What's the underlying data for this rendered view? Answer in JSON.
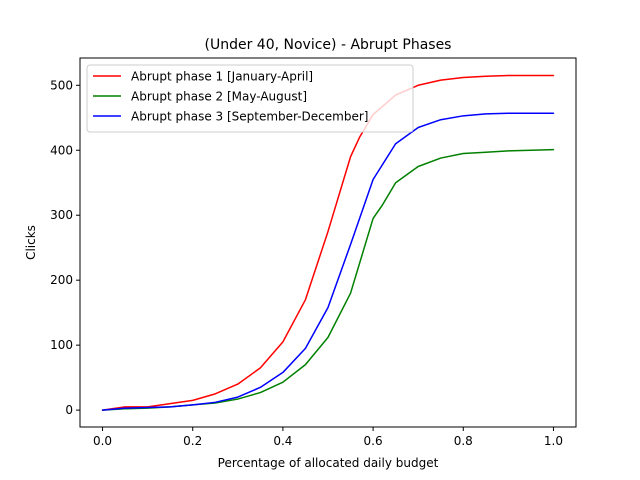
{
  "chart_data": {
    "type": "line",
    "title": "(Under 40, Novice) - Abrupt Phases",
    "xlabel": "Percentage of allocated daily budget",
    "ylabel": "Clicks",
    "xlim": [
      -0.05,
      1.05
    ],
    "ylim": [
      -26,
      542
    ],
    "x_ticks": [
      0.0,
      0.2,
      0.4,
      0.6,
      0.8,
      1.0
    ],
    "x_tick_labels": [
      "0.0",
      "0.2",
      "0.4",
      "0.6",
      "0.8",
      "1.0"
    ],
    "y_ticks": [
      0,
      100,
      200,
      300,
      400,
      500
    ],
    "y_tick_labels": [
      "0",
      "100",
      "200",
      "300",
      "400",
      "500"
    ],
    "grid": false,
    "legend_position": "upper-left",
    "series": [
      {
        "name": "Abrupt phase 1 [January-April]",
        "color": "#ff0000",
        "x": [
          0.0,
          0.05,
          0.1,
          0.15,
          0.2,
          0.25,
          0.3,
          0.35,
          0.4,
          0.45,
          0.5,
          0.55,
          0.57,
          0.6,
          0.65,
          0.7,
          0.75,
          0.8,
          0.85,
          0.9,
          0.95,
          1.0
        ],
        "y": [
          0,
          5,
          5,
          10,
          15,
          25,
          40,
          65,
          105,
          170,
          275,
          390,
          420,
          455,
          485,
          500,
          508,
          512,
          514,
          515,
          515,
          515
        ]
      },
      {
        "name": "Abrupt phase 2 [May-August]",
        "color": "#008000",
        "x": [
          0.0,
          0.05,
          0.1,
          0.15,
          0.2,
          0.25,
          0.3,
          0.35,
          0.4,
          0.45,
          0.5,
          0.55,
          0.6,
          0.62,
          0.65,
          0.7,
          0.75,
          0.8,
          0.85,
          0.9,
          0.95,
          1.0
        ],
        "y": [
          0,
          2,
          3,
          5,
          8,
          11,
          17,
          27,
          43,
          70,
          112,
          180,
          295,
          315,
          350,
          375,
          388,
          395,
          397,
          399,
          400,
          401
        ]
      },
      {
        "name": "Abrupt phase 3 [September-December]",
        "color": "#0000ff",
        "x": [
          0.0,
          0.05,
          0.1,
          0.15,
          0.2,
          0.25,
          0.3,
          0.35,
          0.4,
          0.45,
          0.5,
          0.55,
          0.6,
          0.65,
          0.7,
          0.75,
          0.8,
          0.85,
          0.9,
          0.95,
          1.0
        ],
        "y": [
          0,
          3,
          4,
          5,
          8,
          12,
          20,
          35,
          58,
          95,
          158,
          255,
          355,
          410,
          435,
          447,
          453,
          456,
          457,
          457,
          457
        ]
      }
    ]
  }
}
